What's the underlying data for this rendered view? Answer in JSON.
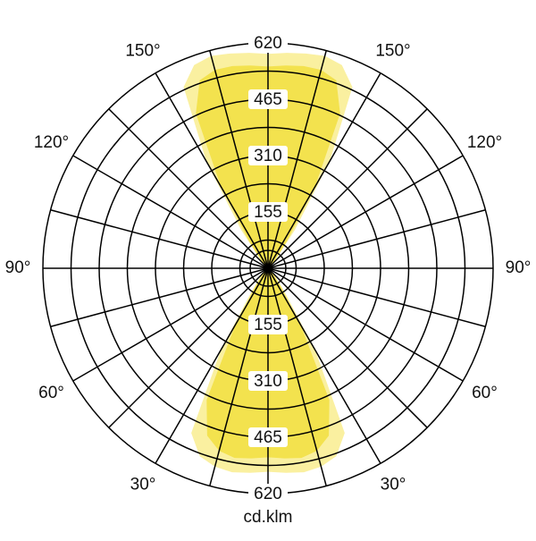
{
  "chart_data": {
    "type": "polar-area",
    "unit_label": "cd.klm",
    "x": [
      0,
      5,
      10,
      15,
      20,
      25,
      30,
      35,
      40,
      45,
      50,
      55,
      60,
      65,
      70,
      75,
      80,
      85,
      90,
      95,
      100,
      105,
      110,
      115,
      120,
      125,
      130,
      135,
      140,
      145,
      150,
      155,
      160,
      165,
      170,
      175,
      180,
      185,
      190,
      195,
      200,
      205,
      210,
      215,
      220,
      225,
      230,
      235,
      240,
      245,
      250,
      255,
      260,
      265,
      270,
      275,
      280,
      285,
      290,
      295,
      300,
      305,
      310,
      315,
      320,
      325,
      330,
      335,
      340,
      345,
      350,
      355
    ],
    "series": [
      {
        "color": "#faf0a0",
        "values": [
          560,
          565,
          570,
          565,
          550,
          500,
          260,
          80,
          35,
          20,
          15,
          10,
          10,
          10,
          10,
          10,
          10,
          10,
          10,
          10,
          10,
          10,
          10,
          10,
          10,
          10,
          15,
          20,
          40,
          130,
          340,
          550,
          595,
          605,
          600,
          595,
          590,
          595,
          600,
          605,
          595,
          550,
          340,
          130,
          40,
          20,
          15,
          10,
          10,
          10,
          10,
          10,
          10,
          10,
          10,
          10,
          10,
          10,
          10,
          10,
          10,
          10,
          15,
          20,
          35,
          80,
          260,
          500,
          550,
          565,
          570,
          565
        ]
      },
      {
        "color": "#f3e24e",
        "values": [
          520,
          525,
          530,
          520,
          490,
          400,
          180,
          60,
          25,
          15,
          10,
          8,
          8,
          8,
          8,
          8,
          8,
          8,
          8,
          8,
          8,
          8,
          8,
          8,
          8,
          8,
          10,
          15,
          30,
          90,
          260,
          470,
          550,
          565,
          565,
          560,
          555,
          560,
          565,
          565,
          550,
          470,
          260,
          90,
          30,
          15,
          10,
          8,
          8,
          8,
          8,
          8,
          8,
          8,
          8,
          8,
          8,
          8,
          8,
          8,
          8,
          8,
          10,
          15,
          25,
          60,
          180,
          400,
          490,
          520,
          530,
          525
        ]
      }
    ],
    "rlim": [
      0,
      620
    ],
    "rticks": [
      155,
      310,
      465,
      620
    ],
    "angle_ticks": [
      {
        "value": 30,
        "label": "30°"
      },
      {
        "value": 60,
        "label": "60°"
      },
      {
        "value": 90,
        "label": "90°"
      },
      {
        "value": 120,
        "label": "120°"
      },
      {
        "value": 150,
        "label": "150°"
      }
    ]
  }
}
